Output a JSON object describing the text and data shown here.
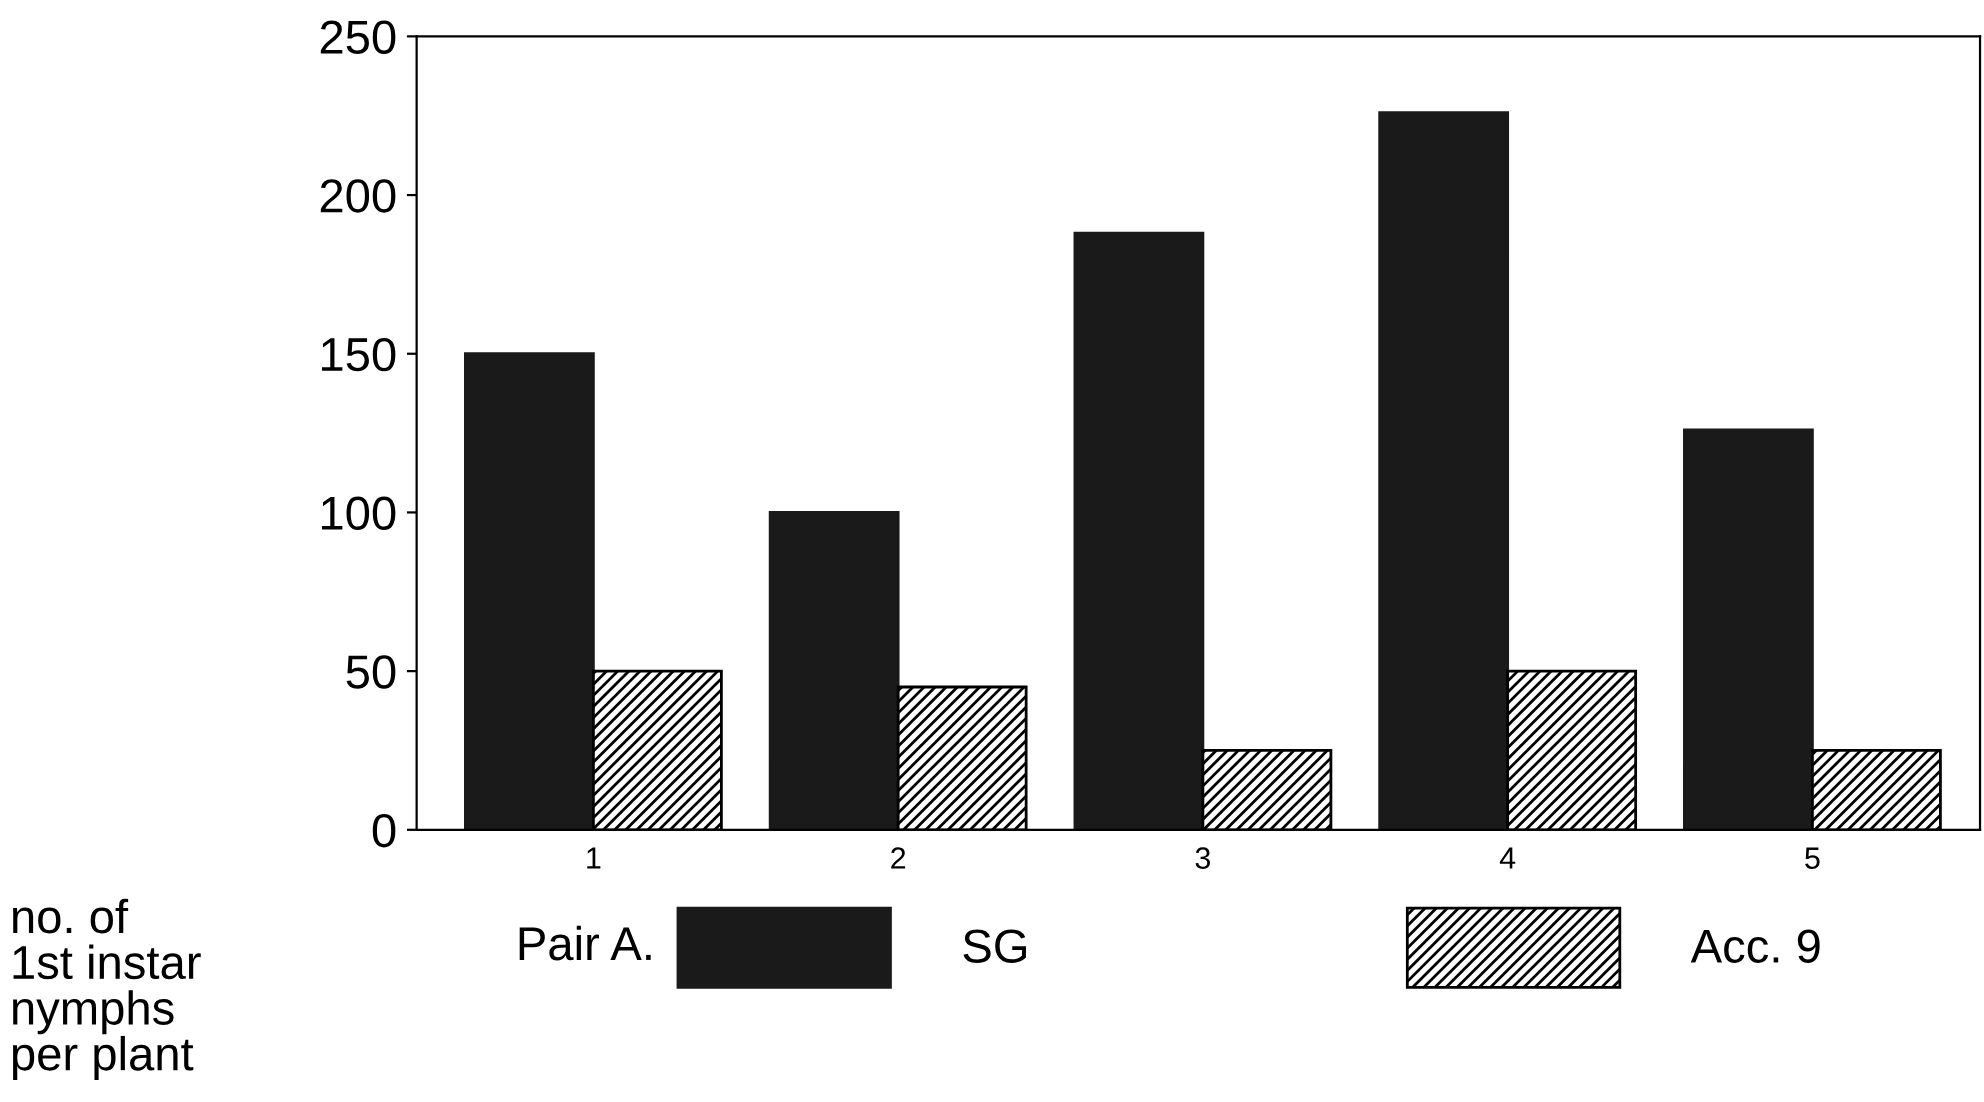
{
  "chart_data": {
    "type": "bar",
    "categories": [
      "1",
      "2",
      "3",
      "4",
      "5"
    ],
    "series": [
      {
        "name": "SG",
        "color": "#1a1a1a",
        "values": [
          150,
          100,
          188,
          226,
          126
        ]
      },
      {
        "name": "Acc. 9",
        "color": "#000000",
        "values": [
          50,
          45,
          25,
          50,
          25
        ]
      }
    ],
    "ylabel": "no. of\n1st instar\nnymphs\nper plant",
    "legend_title": "Pair A.",
    "legend": "bottom",
    "ylim": [
      0,
      250
    ],
    "yticks": [
      0,
      50,
      100,
      150,
      200,
      250
    ],
    "grid": false
  }
}
